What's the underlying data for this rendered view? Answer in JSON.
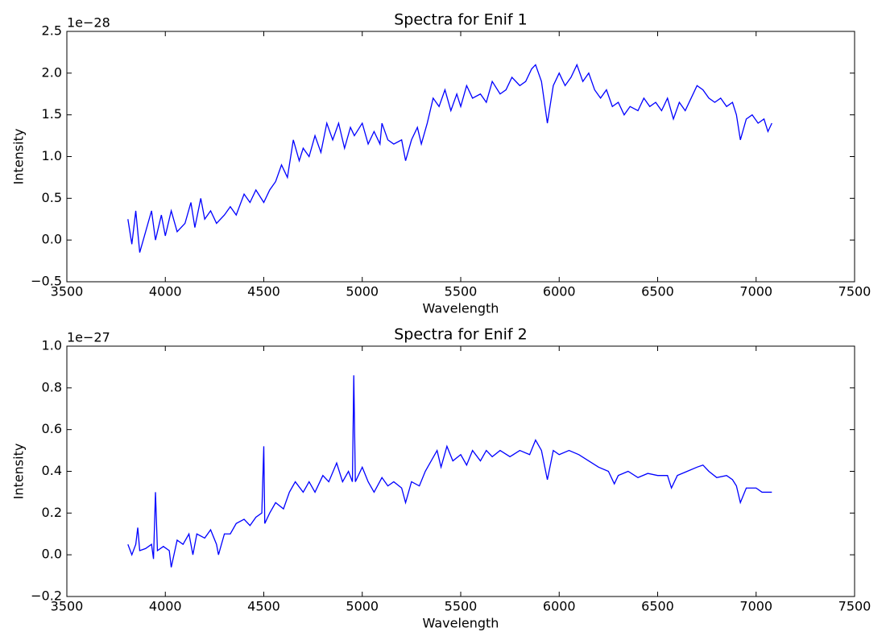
{
  "chart_data": [
    {
      "type": "line",
      "title": "Spectra for Enif 1",
      "xlabel": "Wavelength",
      "ylabel": "Intensity",
      "offset_text": "1e−28",
      "x": [
        3810,
        3830,
        3850,
        3870,
        3900,
        3930,
        3950,
        3980,
        4000,
        4030,
        4060,
        4100,
        4130,
        4150,
        4180,
        4200,
        4230,
        4260,
        4300,
        4330,
        4360,
        4400,
        4430,
        4460,
        4500,
        4530,
        4560,
        4590,
        4620,
        4650,
        4680,
        4700,
        4730,
        4760,
        4790,
        4820,
        4850,
        4880,
        4910,
        4940,
        4960,
        5000,
        5030,
        5060,
        5090,
        5100,
        5130,
        5160,
        5200,
        5220,
        5250,
        5280,
        5300,
        5330,
        5360,
        5390,
        5420,
        5450,
        5480,
        5500,
        5530,
        5560,
        5600,
        5630,
        5660,
        5700,
        5730,
        5760,
        5800,
        5830,
        5860,
        5880,
        5910,
        5940,
        5970,
        6000,
        6030,
        6060,
        6090,
        6120,
        6150,
        6180,
        6210,
        6240,
        6270,
        6300,
        6330,
        6360,
        6400,
        6430,
        6460,
        6490,
        6520,
        6550,
        6580,
        6610,
        6640,
        6670,
        6700,
        6730,
        6760,
        6790,
        6820,
        6850,
        6880,
        6900,
        6920,
        6950,
        6980,
        7010,
        7040,
        7060,
        7080
      ],
      "series": [
        {
          "color": "#0000ff",
          "values": [
            0.25,
            -0.05,
            0.35,
            -0.15,
            0.1,
            0.35,
            0.0,
            0.3,
            0.05,
            0.35,
            0.1,
            0.2,
            0.45,
            0.15,
            0.5,
            0.25,
            0.35,
            0.2,
            0.3,
            0.4,
            0.3,
            0.55,
            0.45,
            0.6,
            0.45,
            0.6,
            0.7,
            0.9,
            0.75,
            1.2,
            0.95,
            1.1,
            1.0,
            1.25,
            1.05,
            1.4,
            1.2,
            1.4,
            1.1,
            1.35,
            1.25,
            1.4,
            1.15,
            1.3,
            1.15,
            1.4,
            1.2,
            1.15,
            1.2,
            0.95,
            1.2,
            1.35,
            1.15,
            1.4,
            1.7,
            1.6,
            1.8,
            1.55,
            1.75,
            1.6,
            1.85,
            1.7,
            1.75,
            1.65,
            1.9,
            1.75,
            1.8,
            1.95,
            1.85,
            1.9,
            2.05,
            2.1,
            1.9,
            1.4,
            1.85,
            2.0,
            1.85,
            1.95,
            2.1,
            1.9,
            2.0,
            1.8,
            1.7,
            1.8,
            1.6,
            1.65,
            1.5,
            1.6,
            1.55,
            1.7,
            1.6,
            1.65,
            1.55,
            1.7,
            1.45,
            1.65,
            1.55,
            1.7,
            1.85,
            1.8,
            1.7,
            1.65,
            1.7,
            1.6,
            1.65,
            1.5,
            1.2,
            1.45,
            1.5,
            1.4,
            1.45,
            1.3,
            1.4
          ]
        }
      ],
      "xlim": [
        3500,
        7500
      ],
      "xticks": [
        3500,
        4000,
        4500,
        5000,
        5500,
        6000,
        6500,
        7000,
        7500
      ],
      "ylim": [
        -0.5,
        2.5
      ],
      "yticks": [
        {
          "value": -0.5,
          "label": "−0.5"
        },
        {
          "value": 0,
          "label": "0.0"
        },
        0.5,
        {
          "value": 1,
          "label": "1.0"
        },
        1.5,
        {
          "value": 2,
          "label": "2.0"
        },
        2.5
      ]
    },
    {
      "type": "line",
      "title": "Spectra for Enif 2",
      "xlabel": "Wavelength",
      "ylabel": "Intensity",
      "offset_text": "1e−27",
      "x": [
        3810,
        3830,
        3850,
        3860,
        3870,
        3900,
        3930,
        3940,
        3950,
        3960,
        3990,
        4020,
        4030,
        4060,
        4090,
        4120,
        4140,
        4160,
        4200,
        4230,
        4260,
        4270,
        4300,
        4330,
        4360,
        4400,
        4430,
        4460,
        4490,
        4500,
        4505,
        4530,
        4560,
        4600,
        4630,
        4660,
        4700,
        4730,
        4760,
        4800,
        4830,
        4870,
        4900,
        4930,
        4950,
        4957,
        4965,
        5000,
        5030,
        5060,
        5100,
        5130,
        5160,
        5200,
        5220,
        5250,
        5290,
        5320,
        5350,
        5380,
        5400,
        5430,
        5460,
        5500,
        5530,
        5560,
        5600,
        5630,
        5660,
        5700,
        5750,
        5800,
        5850,
        5880,
        5910,
        5940,
        5970,
        6000,
        6050,
        6100,
        6150,
        6200,
        6250,
        6280,
        6300,
        6350,
        6400,
        6450,
        6500,
        6550,
        6570,
        6600,
        6650,
        6700,
        6730,
        6760,
        6800,
        6850,
        6880,
        6900,
        6920,
        6950,
        7000,
        7030,
        7060,
        7080
      ],
      "series": [
        {
          "color": "#0000ff",
          "values": [
            0.05,
            0.0,
            0.05,
            0.13,
            0.02,
            0.03,
            0.05,
            -0.02,
            0.3,
            0.02,
            0.04,
            0.02,
            -0.06,
            0.07,
            0.05,
            0.1,
            0.0,
            0.1,
            0.08,
            0.12,
            0.05,
            0.0,
            0.1,
            0.1,
            0.15,
            0.17,
            0.14,
            0.18,
            0.2,
            0.52,
            0.15,
            0.2,
            0.25,
            0.22,
            0.3,
            0.35,
            0.3,
            0.35,
            0.3,
            0.38,
            0.35,
            0.44,
            0.35,
            0.4,
            0.35,
            0.86,
            0.35,
            0.42,
            0.35,
            0.3,
            0.37,
            0.33,
            0.35,
            0.32,
            0.25,
            0.35,
            0.33,
            0.4,
            0.45,
            0.5,
            0.42,
            0.52,
            0.45,
            0.48,
            0.43,
            0.5,
            0.45,
            0.5,
            0.47,
            0.5,
            0.47,
            0.5,
            0.48,
            0.55,
            0.5,
            0.36,
            0.5,
            0.48,
            0.5,
            0.48,
            0.45,
            0.42,
            0.4,
            0.34,
            0.38,
            0.4,
            0.37,
            0.39,
            0.38,
            0.38,
            0.32,
            0.38,
            0.4,
            0.42,
            0.43,
            0.4,
            0.37,
            0.38,
            0.36,
            0.33,
            0.25,
            0.32,
            0.32,
            0.3,
            0.3,
            0.3
          ]
        }
      ],
      "xlim": [
        3500,
        7500
      ],
      "xticks": [
        3500,
        4000,
        4500,
        5000,
        5500,
        6000,
        6500,
        7000,
        7500
      ],
      "ylim": [
        -0.2,
        1.0
      ],
      "yticks": [
        {
          "value": -0.2,
          "label": "−0.2"
        },
        {
          "value": 0,
          "label": "0.0"
        },
        0.2,
        0.4,
        0.6,
        0.8,
        {
          "value": 1,
          "label": "1.0"
        }
      ]
    }
  ]
}
